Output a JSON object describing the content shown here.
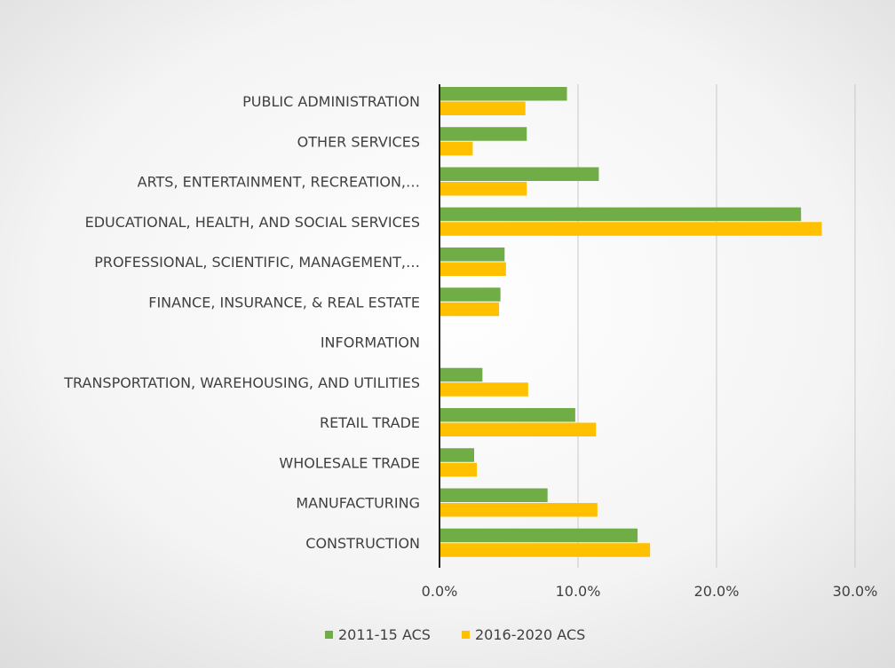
{
  "chart_data": {
    "type": "bar",
    "orientation": "horizontal",
    "categories": [
      "PUBLIC ADMINISTRATION",
      "OTHER SERVICES",
      "ARTS, ENTERTAINMENT, RECREATION,…",
      "EDUCATIONAL, HEALTH, AND SOCIAL SERVICES",
      "PROFESSIONAL, SCIENTIFIC, MANAGEMENT,…",
      "FINANCE, INSURANCE, & REAL ESTATE",
      "INFORMATION",
      "TRANSPORTATION, WAREHOUSING, AND UTILITIES",
      "RETAIL TRADE",
      "WHOLESALE TRADE",
      "MANUFACTURING",
      "CONSTRUCTION"
    ],
    "series": [
      {
        "name": "2011-15 ACS",
        "color": "#70ad47",
        "values": [
          9.2,
          6.3,
          11.5,
          26.1,
          4.7,
          4.4,
          0.0,
          3.1,
          9.8,
          2.5,
          7.8,
          14.3
        ]
      },
      {
        "name": "2016-2020 ACS",
        "color": "#ffc000",
        "values": [
          6.2,
          2.4,
          6.3,
          27.6,
          4.8,
          4.3,
          0.0,
          6.4,
          11.3,
          2.7,
          11.4,
          15.2
        ]
      }
    ],
    "xlim": [
      0,
      30
    ],
    "xticks": [
      "0.0%",
      "10.0%",
      "20.0%",
      "30.0%"
    ],
    "xtick_values": [
      0,
      10,
      20,
      30
    ],
    "grid": true,
    "legend_position": "bottom",
    "title": "",
    "xlabel": "",
    "ylabel": ""
  }
}
